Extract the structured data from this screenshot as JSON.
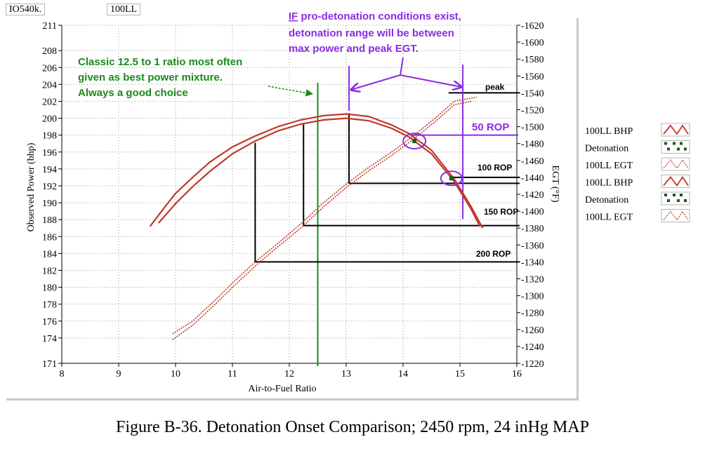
{
  "header": {
    "engine": "IO540k.",
    "fuel": "100LL"
  },
  "caption": "Figure B-36.  Detonation Onset Comparison; 2450 rpm, 24 inHg MAP",
  "colors": {
    "bhp": "#c0392b",
    "egt": "#c0392b",
    "detonation": "#1a5c1a",
    "green": "#1a8a1a",
    "purple": "#8a2be2",
    "black": "#000000"
  },
  "chart_data": {
    "type": "line",
    "xlabel": "Air-to-Fuel Ratio",
    "ylabel": "Observed Power (bhp)",
    "y2label": "EGT (°F)",
    "xlim": [
      8,
      16
    ],
    "ylim": [
      171,
      211
    ],
    "y2lim": [
      1220,
      1620
    ],
    "x_ticks": [
      8,
      9,
      10,
      11,
      12,
      13,
      14,
      15,
      16
    ],
    "y_ticks": [
      171,
      174,
      176,
      178,
      180,
      182,
      184,
      186,
      188,
      190,
      192,
      194,
      196,
      198,
      200,
      202,
      204,
      206,
      208,
      211
    ],
    "y2_ticks": [
      1220,
      1240,
      1260,
      1280,
      1300,
      1320,
      1340,
      1360,
      1380,
      1400,
      1420,
      1440,
      1460,
      1480,
      1500,
      1520,
      1540,
      1560,
      1580,
      1600,
      1620
    ],
    "legend_position": "right",
    "legend": [
      "100LL BHP",
      "Detonation",
      "100LL EGT",
      "100LL BHP",
      "Detonation",
      "100LL EGT"
    ],
    "series": [
      {
        "name": "100LL BHP",
        "axis": "left",
        "points": [
          [
            9.55,
            187.2
          ],
          [
            9.8,
            189.4
          ],
          [
            10.0,
            191.1
          ],
          [
            10.3,
            193.0
          ],
          [
            10.6,
            194.8
          ],
          [
            11.0,
            196.6
          ],
          [
            11.4,
            197.9
          ],
          [
            11.8,
            199.0
          ],
          [
            12.2,
            199.8
          ],
          [
            12.6,
            200.3
          ],
          [
            13.0,
            200.5
          ],
          [
            13.4,
            200.2
          ],
          [
            13.8,
            199.2
          ],
          [
            14.1,
            198.2
          ],
          [
            14.5,
            196.2
          ],
          [
            14.9,
            192.8
          ],
          [
            15.2,
            189.5
          ],
          [
            15.4,
            187.0
          ]
        ]
      },
      {
        "name": "100LL BHP",
        "axis": "left",
        "points": [
          [
            9.7,
            187.6
          ],
          [
            10.0,
            189.9
          ],
          [
            10.3,
            191.9
          ],
          [
            10.6,
            193.7
          ],
          [
            11.0,
            195.8
          ],
          [
            11.4,
            197.3
          ],
          [
            11.8,
            198.5
          ],
          [
            12.2,
            199.3
          ],
          [
            12.6,
            199.8
          ],
          [
            13.0,
            200.0
          ],
          [
            13.4,
            199.7
          ],
          [
            13.8,
            198.8
          ],
          [
            14.1,
            197.8
          ],
          [
            14.5,
            195.8
          ],
          [
            14.9,
            192.5
          ],
          [
            15.2,
            189.2
          ],
          [
            15.35,
            187.2
          ]
        ]
      },
      {
        "name": "100LL EGT",
        "axis": "right",
        "points": [
          [
            9.95,
            1255
          ],
          [
            10.3,
            1270
          ],
          [
            10.7,
            1295
          ],
          [
            11.0,
            1315
          ],
          [
            11.4,
            1340
          ],
          [
            11.8,
            1362
          ],
          [
            12.2,
            1385
          ],
          [
            12.6,
            1410
          ],
          [
            13.0,
            1432
          ],
          [
            13.4,
            1452
          ],
          [
            13.8,
            1470
          ],
          [
            14.2,
            1490
          ],
          [
            14.6,
            1512
          ],
          [
            14.9,
            1530
          ],
          [
            15.3,
            1535
          ]
        ]
      },
      {
        "name": "100LL EGT",
        "axis": "right",
        "points": [
          [
            9.95,
            1248
          ],
          [
            10.3,
            1265
          ],
          [
            10.7,
            1290
          ],
          [
            11.0,
            1310
          ],
          [
            11.4,
            1335
          ],
          [
            11.8,
            1358
          ],
          [
            12.2,
            1380
          ],
          [
            12.6,
            1405
          ],
          [
            13.0,
            1428
          ],
          [
            13.4,
            1448
          ],
          [
            13.8,
            1466
          ],
          [
            14.2,
            1486
          ],
          [
            14.6,
            1508
          ],
          [
            14.9,
            1526
          ],
          [
            15.2,
            1530
          ]
        ]
      },
      {
        "name": "Detonation",
        "axis": "left",
        "points": [
          [
            14.2,
            197.3
          ],
          [
            14.85,
            192.9
          ]
        ]
      }
    ],
    "annotations": {
      "green_text": [
        "Classic 12.5 to 1 ratio most often",
        "given as best power mixture.",
        "Always a good choice"
      ],
      "purple_text_prefix": "IF",
      "purple_text_line1_rest": " pro-detonation conditions exist,",
      "purple_text_line2": "detonation range will be between",
      "purple_text_line3": "max power and peak EGT.",
      "peak": "peak",
      "rop50": "50 ROP",
      "rop100": "100 ROP",
      "rop150": "150 ROP",
      "rop200": "200 ROP",
      "green_line_x": 12.5,
      "purple_line_left_x": 13.05,
      "purple_line_right_x": 15.05,
      "max_power_x": 13.05,
      "max_power_bhp": 200.6,
      "max_power_egt": 1433,
      "rop_points": [
        {
          "label": "50 ROP",
          "x": 14.2,
          "egt": 1490
        },
        {
          "label": "100 ROP",
          "x": 14.85,
          "egt": 1440
        },
        {
          "label": "150 ROP",
          "x": 15.05,
          "egt": 1390
        }
      ],
      "lean_points": [
        {
          "x": 13.05,
          "bhp": 200.6,
          "egt": 1433
        },
        {
          "x": 12.25,
          "bhp": 199.3,
          "egt": 1383
        },
        {
          "x": 11.4,
          "bhp": 197.1,
          "egt": 1340
        }
      ],
      "peak_egt": 1540
    }
  }
}
